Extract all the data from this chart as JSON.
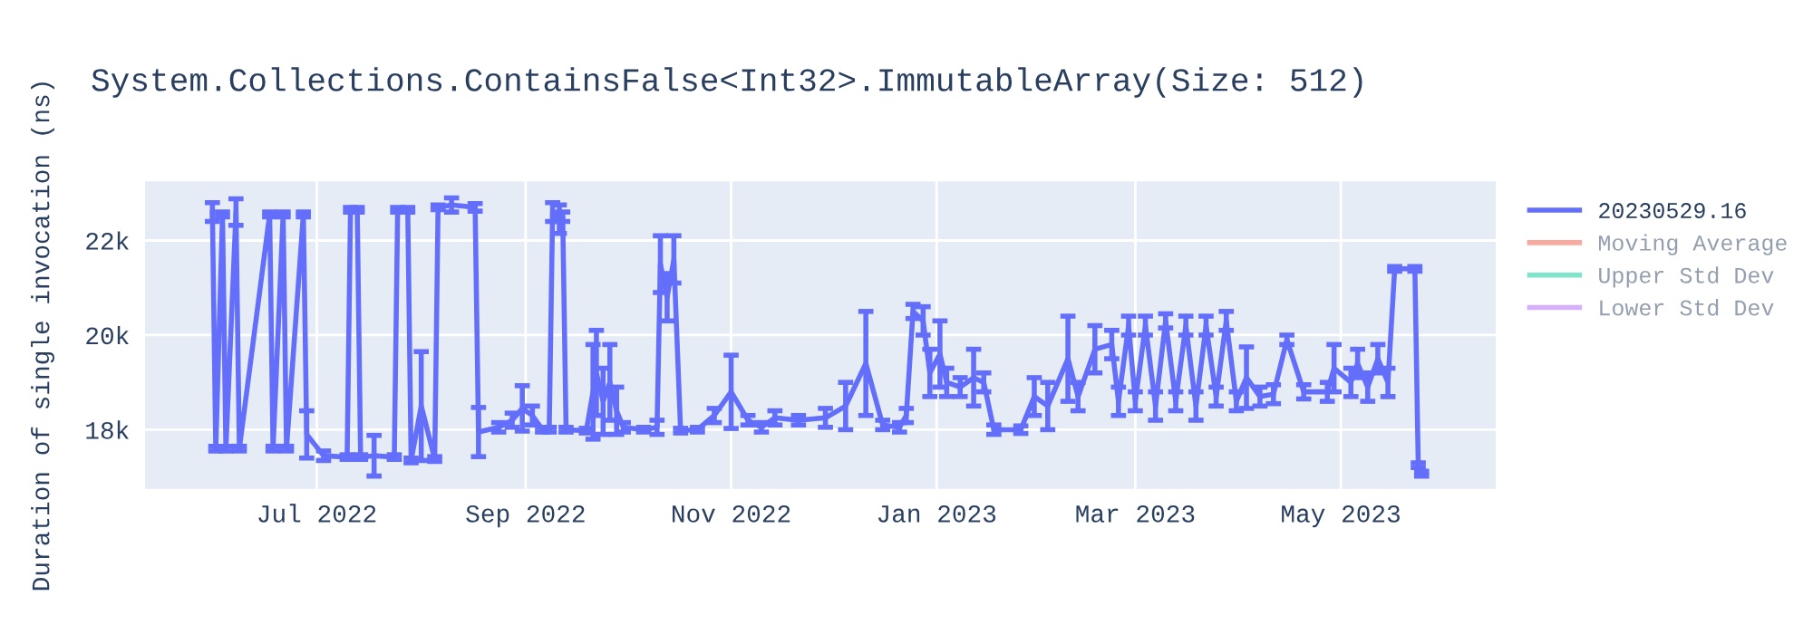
{
  "chart_data": {
    "type": "line",
    "title": "System.Collections.ContainsFalse<Int32>.ImmutableArray(Size: 512)",
    "ylabel": "Duration of single invocation (ns)",
    "x": [
      "2022-05-31",
      "2022-06-01",
      "2022-06-03",
      "2022-06-04",
      "2022-06-07",
      "2022-06-08",
      "2022-06-17",
      "2022-06-18",
      "2022-06-21",
      "2022-06-22",
      "2022-06-27",
      "2022-06-28",
      "2022-07-03",
      "2022-07-10",
      "2022-07-11",
      "2022-07-13",
      "2022-07-14",
      "2022-07-18",
      "2022-07-24",
      "2022-07-25",
      "2022-07-28",
      "2022-07-29",
      "2022-08-01",
      "2022-08-05",
      "2022-08-06",
      "2022-08-10",
      "2022-08-17",
      "2022-08-18",
      "2022-08-24",
      "2022-08-28",
      "2022-08-31",
      "2022-09-03",
      "2022-09-06",
      "2022-09-08",
      "2022-09-09",
      "2022-09-11",
      "2022-09-12",
      "2022-09-13",
      "2022-09-19",
      "2022-09-21",
      "2022-09-22",
      "2022-09-24",
      "2022-09-26",
      "2022-09-28",
      "2022-09-30",
      "2022-10-06",
      "2022-10-10",
      "2022-10-11",
      "2022-10-13",
      "2022-10-15",
      "2022-10-17",
      "2022-10-22",
      "2022-10-27",
      "2022-11-01",
      "2022-11-06",
      "2022-11-10",
      "2022-11-14",
      "2022-11-21",
      "2022-11-29",
      "2022-12-05",
      "2022-12-11",
      "2022-12-16",
      "2022-12-21",
      "2022-12-23",
      "2022-12-25",
      "2022-12-28",
      "2022-12-30",
      "2023-01-02",
      "2023-01-04",
      "2023-01-08",
      "2023-01-12",
      "2023-01-15",
      "2023-01-18",
      "2023-01-26",
      "2023-01-30",
      "2023-02-03",
      "2023-02-09",
      "2023-02-12",
      "2023-02-17",
      "2023-02-22",
      "2023-02-24",
      "2023-02-27",
      "2023-03-01",
      "2023-03-04",
      "2023-03-07",
      "2023-03-10",
      "2023-03-13",
      "2023-03-16",
      "2023-03-19",
      "2023-03-22",
      "2023-03-25",
      "2023-03-28",
      "2023-03-31",
      "2023-04-03",
      "2023-04-07",
      "2023-04-11",
      "2023-04-15",
      "2023-04-20",
      "2023-04-27",
      "2023-04-29",
      "2023-05-04",
      "2023-05-06",
      "2023-05-09",
      "2023-05-12",
      "2023-05-15",
      "2023-05-17",
      "2023-05-23",
      "2023-05-24",
      "2023-05-25"
    ],
    "series": [
      {
        "name": "20230529.16",
        "color": "#636efa",
        "values": [
          22600,
          17600,
          22550,
          17600,
          22600,
          17600,
          22550,
          17600,
          22550,
          17600,
          22550,
          17900,
          17450,
          17420,
          22650,
          22650,
          17420,
          17450,
          17420,
          22650,
          22650,
          17350,
          18500,
          17380,
          22700,
          22750,
          22700,
          17950,
          18050,
          18200,
          18450,
          18300,
          18000,
          18000,
          22600,
          22450,
          22500,
          18000,
          17980,
          18800,
          19200,
          18600,
          19000,
          18400,
          18050,
          18000,
          18050,
          21500,
          20800,
          21600,
          17980,
          18000,
          18300,
          18800,
          18200,
          18050,
          18250,
          18200,
          18250,
          18500,
          19400,
          18100,
          18050,
          18300,
          20500,
          20300,
          19200,
          19600,
          19000,
          18900,
          19100,
          19000,
          18000,
          18000,
          18700,
          18500,
          19500,
          18700,
          19700,
          19800,
          18600,
          20200,
          18600,
          20200,
          18500,
          20300,
          18600,
          20200,
          18500,
          20200,
          18700,
          20300,
          18600,
          19100,
          18700,
          18750,
          19900,
          18800,
          18800,
          19300,
          19000,
          19400,
          18900,
          19500,
          19000,
          21400,
          21400,
          17250,
          17070
        ],
        "errors": [
          200,
          50,
          50,
          50,
          280,
          50,
          50,
          50,
          50,
          50,
          50,
          500,
          100,
          50,
          50,
          50,
          50,
          430,
          50,
          50,
          50,
          50,
          1150,
          50,
          50,
          150,
          80,
          520,
          100,
          150,
          480,
          200,
          50,
          50,
          200,
          300,
          100,
          50,
          50,
          1000,
          900,
          700,
          800,
          500,
          100,
          50,
          150,
          600,
          500,
          500,
          50,
          50,
          150,
          775,
          100,
          100,
          150,
          100,
          200,
          500,
          1100,
          100,
          100,
          150,
          150,
          300,
          500,
          700,
          300,
          200,
          600,
          200,
          100,
          80,
          400,
          500,
          900,
          300,
          500,
          300,
          300,
          200,
          200,
          200,
          300,
          150,
          200,
          200,
          300,
          200,
          200,
          200,
          200,
          650,
          200,
          200,
          100,
          150,
          200,
          500,
          300,
          300,
          300,
          300,
          300,
          50,
          50,
          50,
          50
        ]
      },
      {
        "name": "Moving Average",
        "color": "#ef553b",
        "values": [
          null,
          null,
          null,
          null,
          null,
          null,
          null,
          null,
          null,
          null,
          null,
          null,
          null,
          null,
          null,
          null,
          null,
          null,
          null,
          null,
          null,
          null,
          null,
          null,
          null,
          null,
          null,
          null,
          null,
          null,
          null,
          null,
          null,
          null,
          null,
          null,
          null,
          null,
          null,
          null,
          null,
          null,
          null,
          null,
          null,
          null,
          null,
          null,
          null,
          null,
          null,
          null,
          null,
          null,
          null,
          null,
          null,
          null,
          null,
          null,
          null,
          null,
          null,
          null,
          null,
          null,
          null,
          null,
          null,
          null,
          null,
          null,
          null,
          null,
          null,
          null,
          null,
          null,
          null,
          null,
          null,
          null,
          null,
          null,
          null,
          null,
          null,
          null,
          null,
          null,
          null,
          null,
          null,
          null,
          null,
          null,
          null,
          null,
          null,
          null,
          null,
          null,
          null,
          null,
          null,
          null,
          null,
          null,
          null
        ]
      },
      {
        "name": "Upper Std Dev",
        "color": "#00cc96",
        "values": [
          null,
          null,
          null,
          null,
          null,
          null,
          null,
          null,
          null,
          null,
          null,
          null,
          null,
          null,
          null,
          null,
          null,
          null,
          null,
          null,
          null,
          null,
          null,
          null,
          null,
          null,
          null,
          null,
          null,
          null,
          null,
          null,
          null,
          null,
          null,
          null,
          null,
          null,
          null,
          null,
          null,
          null,
          null,
          null,
          null,
          null,
          null,
          null,
          null,
          null,
          null,
          null,
          null,
          null,
          null,
          null,
          null,
          null,
          null,
          null,
          null,
          null,
          null,
          null,
          null,
          null,
          null,
          null,
          null,
          null,
          null,
          null,
          null,
          null,
          null,
          null,
          null,
          null,
          null,
          null,
          null,
          null,
          null,
          null,
          null,
          null,
          null,
          null,
          null,
          null,
          null,
          null,
          null,
          null,
          null,
          null,
          null,
          null,
          null,
          null,
          null,
          null,
          null,
          null,
          null,
          null,
          null,
          null,
          null
        ]
      },
      {
        "name": "Lower Std Dev",
        "color": "#ab63fa",
        "values": [
          null,
          null,
          null,
          null,
          null,
          null,
          null,
          null,
          null,
          null,
          null,
          null,
          null,
          null,
          null,
          null,
          null,
          null,
          null,
          null,
          null,
          null,
          null,
          null,
          null,
          null,
          null,
          null,
          null,
          null,
          null,
          null,
          null,
          null,
          null,
          null,
          null,
          null,
          null,
          null,
          null,
          null,
          null,
          null,
          null,
          null,
          null,
          null,
          null,
          null,
          null,
          null,
          null,
          null,
          null,
          null,
          null,
          null,
          null,
          null,
          null,
          null,
          null,
          null,
          null,
          null,
          null,
          null,
          null,
          null,
          null,
          null,
          null,
          null,
          null,
          null,
          null,
          null,
          null,
          null,
          null,
          null,
          null,
          null,
          null,
          null,
          null,
          null,
          null,
          null,
          null,
          null,
          null,
          null,
          null,
          null,
          null,
          null,
          null,
          null,
          null,
          null,
          null,
          null,
          null,
          null,
          null,
          null,
          null
        ]
      }
    ],
    "xlim": [
      "2022-05-11",
      "2023-06-16"
    ],
    "xticks": [
      {
        "value": "2022-07-01",
        "label": "Jul 2022"
      },
      {
        "value": "2022-09-01",
        "label": "Sep 2022"
      },
      {
        "value": "2022-11-01",
        "label": "Nov 2022"
      },
      {
        "value": "2023-01-01",
        "label": "Jan 2023"
      },
      {
        "value": "2023-03-01",
        "label": "Mar 2023"
      },
      {
        "value": "2023-05-01",
        "label": "May 2023"
      }
    ],
    "ylim": [
      16750,
      23250
    ],
    "yticks": [
      {
        "value": 18000,
        "label": "18k"
      },
      {
        "value": 20000,
        "label": "20k"
      },
      {
        "value": 22000,
        "label": "22k"
      }
    ],
    "grid": true,
    "legend": "top right",
    "marker": "none",
    "line_style": "solid"
  }
}
